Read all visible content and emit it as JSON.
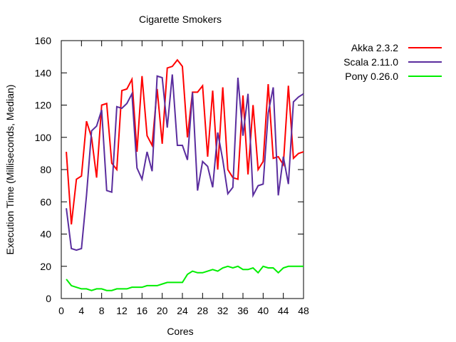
{
  "chart_data": {
    "type": "line",
    "title": "Cigarette Smokers",
    "xlabel": "Cores",
    "ylabel": "Execution Time (Milliseconds, Median)",
    "xlim": [
      0,
      48
    ],
    "ylim": [
      0,
      160
    ],
    "xticks": [
      0,
      4,
      8,
      12,
      16,
      20,
      24,
      28,
      32,
      36,
      40,
      44,
      48
    ],
    "yticks": [
      0,
      20,
      40,
      60,
      80,
      100,
      120,
      140,
      160
    ],
    "grid": false,
    "legend": "top-right, outside plot",
    "x": [
      1,
      2,
      3,
      4,
      5,
      6,
      7,
      8,
      9,
      10,
      11,
      12,
      13,
      14,
      15,
      16,
      17,
      18,
      19,
      20,
      21,
      22,
      23,
      24,
      25,
      26,
      27,
      28,
      29,
      30,
      31,
      32,
      33,
      34,
      35,
      36,
      37,
      38,
      39,
      40,
      41,
      42,
      43,
      44,
      45,
      46,
      47,
      48
    ],
    "series": [
      {
        "name": "Akka 2.3.2",
        "color": "#ff0000",
        "values": [
          91,
          46,
          74,
          76,
          110,
          100,
          75,
          120,
          121,
          84,
          80,
          129,
          130,
          136,
          91,
          138,
          101,
          95,
          130,
          96,
          143,
          144,
          148,
          144,
          100,
          128,
          128,
          132,
          88,
          129,
          80,
          131,
          80,
          75,
          74,
          126,
          77,
          120,
          80,
          85,
          133,
          87,
          88,
          83,
          132,
          87,
          90,
          91
        ]
      },
      {
        "name": "Scala 2.11.0",
        "color": "#5a2d9e",
        "values": [
          56,
          31,
          30,
          31,
          64,
          104,
          107,
          117,
          67,
          66,
          119,
          118,
          121,
          127,
          81,
          74,
          91,
          79,
          138,
          137,
          106,
          139,
          95,
          95,
          86,
          128,
          67,
          85,
          82,
          69,
          103,
          86,
          65,
          69,
          137,
          101,
          127,
          64,
          70,
          71,
          115,
          131,
          64,
          88,
          71,
          122,
          125,
          127
        ]
      },
      {
        "name": "Pony 0.26.0",
        "color": "#00ee00",
        "values": [
          12,
          8,
          7,
          6,
          6,
          5,
          6,
          6,
          5,
          5,
          6,
          6,
          6,
          7,
          7,
          7,
          8,
          8,
          8,
          9,
          10,
          10,
          10,
          10,
          15,
          17,
          16,
          16,
          17,
          18,
          17,
          19,
          20,
          19,
          20,
          18,
          18,
          19,
          16,
          20,
          19,
          19,
          16,
          19,
          20,
          20,
          20,
          20
        ]
      }
    ]
  }
}
